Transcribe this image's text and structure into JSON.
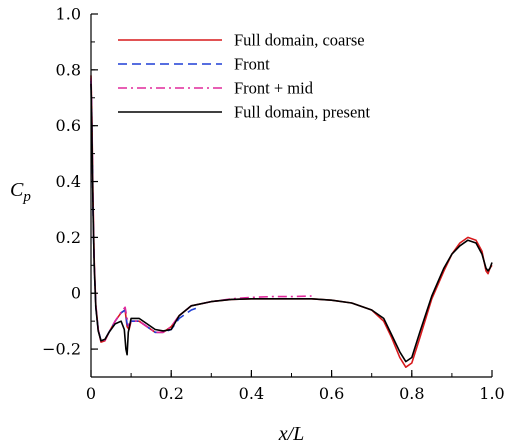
{
  "chart_data": {
    "type": "line",
    "title": "",
    "xlabel": "x/L",
    "ylabel": "C_p",
    "xlim": [
      0,
      1
    ],
    "ylim": [
      -0.3,
      1
    ],
    "xticks": [
      0,
      0.2,
      0.4,
      0.6,
      0.8,
      1
    ],
    "xtick_labels": [
      "0",
      "0.2",
      "0.4",
      "0.6",
      "0.8",
      "1.0"
    ],
    "yticks": [
      -0.2,
      0,
      0.2,
      0.4,
      0.6,
      0.8,
      1
    ],
    "ytick_labels": [
      "−0.2",
      "0",
      "0.2",
      "0.4",
      "0.6",
      "0.8",
      "1.0"
    ],
    "grid": false,
    "legend_position": "top-right",
    "series": [
      {
        "name": "Full domain, coarse",
        "color": "#d7191c",
        "dash": "solid",
        "x": [
          0,
          0.002,
          0.005,
          0.008,
          0.012,
          0.018,
          0.025,
          0.035,
          0.045,
          0.06,
          0.075,
          0.085,
          0.09,
          0.095,
          0.1,
          0.12,
          0.14,
          0.16,
          0.18,
          0.2,
          0.22,
          0.25,
          0.3,
          0.35,
          0.4,
          0.45,
          0.5,
          0.55,
          0.6,
          0.65,
          0.7,
          0.73,
          0.75,
          0.77,
          0.785,
          0.8,
          0.82,
          0.85,
          0.88,
          0.9,
          0.92,
          0.94,
          0.96,
          0.975,
          0.985,
          0.99,
          0.995,
          1.0
        ],
        "y": [
          0.78,
          0.65,
          0.35,
          0.12,
          -0.04,
          -0.13,
          -0.175,
          -0.17,
          -0.14,
          -0.1,
          -0.07,
          -0.06,
          -0.12,
          -0.13,
          -0.1,
          -0.1,
          -0.12,
          -0.14,
          -0.14,
          -0.12,
          -0.08,
          -0.045,
          -0.03,
          -0.022,
          -0.02,
          -0.02,
          -0.02,
          -0.02,
          -0.025,
          -0.035,
          -0.06,
          -0.1,
          -0.16,
          -0.23,
          -0.265,
          -0.25,
          -0.16,
          -0.02,
          0.08,
          0.14,
          0.18,
          0.2,
          0.19,
          0.15,
          0.08,
          0.07,
          0.09,
          0.1
        ]
      },
      {
        "name": "Front",
        "color": "#1f3fd6",
        "dash": "dashed",
        "x": [
          0,
          0.002,
          0.005,
          0.008,
          0.012,
          0.018,
          0.025,
          0.035,
          0.045,
          0.06,
          0.075,
          0.085,
          0.09,
          0.095,
          0.1,
          0.12,
          0.14,
          0.16,
          0.18,
          0.2,
          0.22,
          0.25,
          0.27
        ],
        "y": [
          0.76,
          0.62,
          0.3,
          0.1,
          -0.05,
          -0.13,
          -0.17,
          -0.165,
          -0.14,
          -0.1,
          -0.07,
          -0.06,
          -0.11,
          -0.12,
          -0.1,
          -0.1,
          -0.12,
          -0.14,
          -0.14,
          -0.13,
          -0.09,
          -0.06,
          -0.05
        ]
      },
      {
        "name": "Front + mid",
        "color": "#e0289b",
        "dash": "dashdot",
        "x": [
          0,
          0.002,
          0.005,
          0.008,
          0.012,
          0.018,
          0.025,
          0.035,
          0.045,
          0.06,
          0.075,
          0.085,
          0.09,
          0.095,
          0.1,
          0.12,
          0.14,
          0.16,
          0.18,
          0.2,
          0.22,
          0.25,
          0.3,
          0.35,
          0.4,
          0.45,
          0.5,
          0.55
        ],
        "y": [
          0.77,
          0.63,
          0.32,
          0.11,
          -0.045,
          -0.13,
          -0.172,
          -0.168,
          -0.14,
          -0.1,
          -0.068,
          -0.05,
          -0.09,
          -0.12,
          -0.1,
          -0.1,
          -0.12,
          -0.14,
          -0.14,
          -0.12,
          -0.08,
          -0.045,
          -0.03,
          -0.02,
          -0.015,
          -0.012,
          -0.012,
          -0.01
        ]
      },
      {
        "name": "Full domain, present",
        "color": "#000000",
        "dash": "solid",
        "x": [
          0,
          0.002,
          0.005,
          0.008,
          0.012,
          0.018,
          0.025,
          0.035,
          0.045,
          0.06,
          0.075,
          0.083,
          0.087,
          0.09,
          0.093,
          0.1,
          0.12,
          0.14,
          0.16,
          0.18,
          0.2,
          0.22,
          0.25,
          0.3,
          0.35,
          0.4,
          0.45,
          0.5,
          0.55,
          0.6,
          0.65,
          0.7,
          0.73,
          0.75,
          0.77,
          0.785,
          0.8,
          0.82,
          0.85,
          0.88,
          0.9,
          0.92,
          0.94,
          0.96,
          0.975,
          0.985,
          0.99,
          0.995,
          1.0
        ],
        "y": [
          0.75,
          0.6,
          0.3,
          0.1,
          -0.05,
          -0.135,
          -0.17,
          -0.165,
          -0.14,
          -0.11,
          -0.1,
          -0.13,
          -0.2,
          -0.22,
          -0.14,
          -0.09,
          -0.09,
          -0.11,
          -0.13,
          -0.135,
          -0.13,
          -0.08,
          -0.045,
          -0.03,
          -0.022,
          -0.02,
          -0.02,
          -0.02,
          -0.02,
          -0.025,
          -0.035,
          -0.06,
          -0.09,
          -0.15,
          -0.21,
          -0.245,
          -0.23,
          -0.14,
          -0.01,
          0.09,
          0.14,
          0.17,
          0.19,
          0.18,
          0.14,
          0.09,
          0.08,
          0.09,
          0.11
        ]
      }
    ]
  }
}
